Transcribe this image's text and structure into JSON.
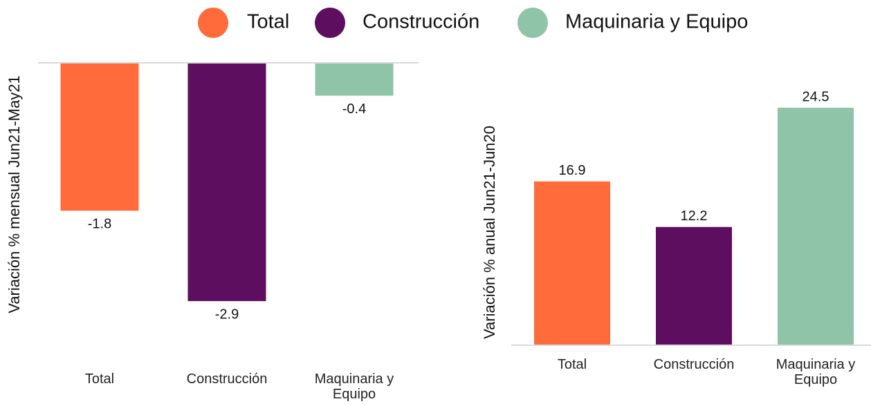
{
  "chart_data": [
    {
      "type": "bar",
      "ylabel": "Variación % mensual Jun21-May21",
      "categories": [
        "Total",
        "Construcción",
        "Maquinaria y Equipo"
      ],
      "values": [
        -1.8,
        -2.9,
        -0.4
      ],
      "colors": [
        "#ff6b3a",
        "#5e0e5e",
        "#8fc4a8"
      ],
      "ylim": [
        -3,
        0
      ]
    },
    {
      "type": "bar",
      "ylabel": "Variación % anual Jun21-Jun20",
      "categories": [
        "Total",
        "Construcción",
        "Maquinaria y Equipo"
      ],
      "values": [
        16.9,
        12.2,
        24.5
      ],
      "colors": [
        "#ff6b3a",
        "#5e0e5e",
        "#8fc4a8"
      ],
      "ylim": [
        0,
        25
      ]
    }
  ]
}
